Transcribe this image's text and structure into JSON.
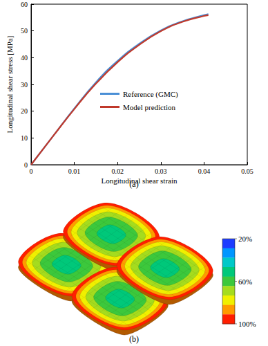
{
  "chart_data": [
    {
      "type": "line",
      "caption": "(a)",
      "xlabel": "Longitudinal shear strain",
      "ylabel": "Longitudinal shear stress [MPa]",
      "x": [
        0,
        0.005,
        0.01,
        0.015,
        0.02,
        0.025,
        0.03,
        0.035,
        0.04,
        0.041
      ],
      "series": [
        {
          "name": "Reference (GMC)",
          "color": "#4a8fd6",
          "values": [
            0,
            10.5,
            21,
            30.8,
            38.8,
            45.2,
            50.2,
            53.6,
            55.9,
            56.3
          ]
        },
        {
          "name": "Model prediction",
          "color": "#c0392b",
          "values": [
            0,
            10.5,
            20.8,
            30.3,
            38.3,
            44.8,
            49.9,
            53.4,
            55.6,
            55.9
          ]
        }
      ],
      "xlim": [
        0,
        0.05
      ],
      "ylim": [
        0,
        60
      ],
      "xticks": [
        0,
        0.01,
        0.02,
        0.03,
        0.04,
        0.05
      ],
      "yticks": [
        0,
        10,
        20,
        30,
        40,
        50,
        60
      ],
      "grid": false,
      "legend": "center"
    },
    {
      "type": "contour",
      "caption": "(b)",
      "colorbar": {
        "range": [
          20,
          100
        ],
        "ticks": [
          {
            "value": 20,
            "label": "20%"
          },
          {
            "value": 60,
            "label": "60%"
          },
          {
            "value": 100,
            "label": "100%"
          }
        ],
        "colors": [
          "#1e3cff",
          "#0096ff",
          "#00c8c8",
          "#00c87a",
          "#3cc83c",
          "#a5dc1e",
          "#f0f000",
          "#ff9b00",
          "#ff1e00"
        ]
      }
    }
  ]
}
